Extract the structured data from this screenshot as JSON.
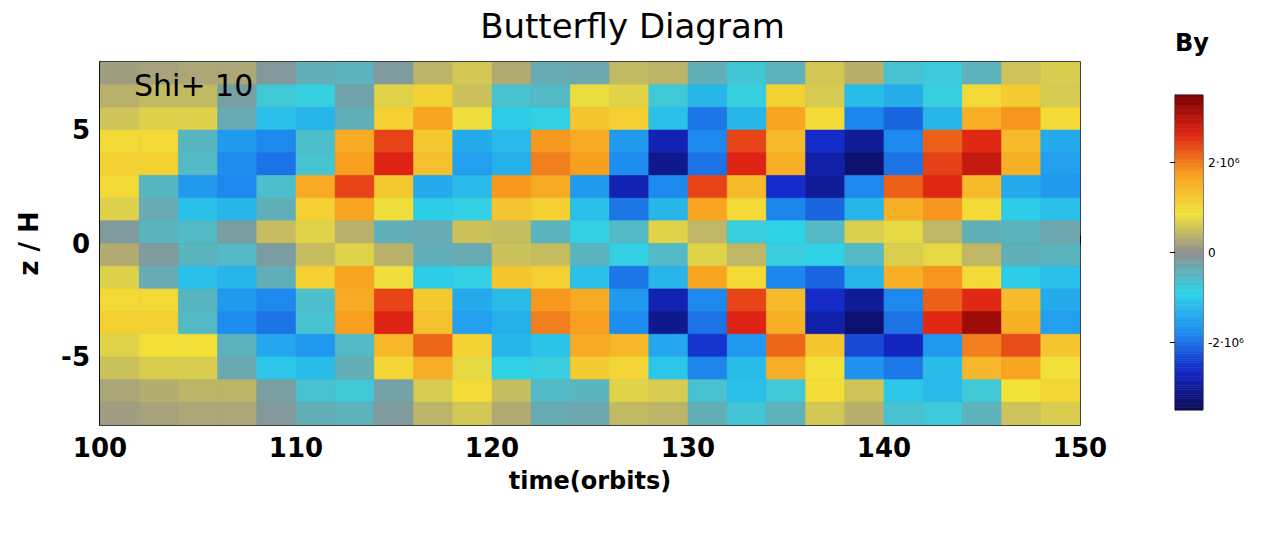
{
  "chart_data": {
    "type": "heatmap",
    "title": "Butterfly Diagram",
    "annotation": "Shi+ 10",
    "x_label": "time(orbits)",
    "y_label": "z / H",
    "xlim": [
      100,
      150
    ],
    "xticks": [
      100,
      110,
      120,
      130,
      140,
      150
    ],
    "ylim": [
      -8,
      8
    ],
    "yticks": [
      -5,
      0,
      5
    ],
    "x": [
      101,
      103,
      105,
      107,
      109,
      111,
      113,
      115,
      117,
      119,
      121,
      123,
      125,
      127,
      129,
      131,
      133,
      135,
      137,
      139,
      141,
      143,
      145,
      147,
      149
    ],
    "y": [
      7.5,
      6.5,
      5.5,
      4.5,
      3.5,
      2.5,
      1.5,
      0.5,
      -0.5,
      -1.5,
      -2.5,
      -3.5,
      -4.5,
      -5.5,
      -6.5,
      -7.5
    ],
    "values": [
      [
        150000.0,
        200000.0,
        250000.0,
        250000.0,
        -120000.0,
        -400000.0,
        -450000.0,
        -150000.0,
        400000.0,
        600000.0,
        300000.0,
        -350000.0,
        -300000.0,
        450000.0,
        400000.0,
        -400000.0,
        -700000.0,
        -450000.0,
        600000.0,
        350000.0,
        -650000.0,
        -750000.0,
        -450000.0,
        550000.0,
        650000.0
      ],
      [
        360000.0,
        450000.0,
        450000.0,
        -220000.0,
        -720000.0,
        -810000.0,
        -270000.0,
        720000.0,
        1080000.0,
        540000.0,
        -630000.0,
        -540000.0,
        810000.0,
        720000.0,
        -720000.0,
        -1260000.0,
        -810000.0,
        1080000.0,
        630000.0,
        -1170000.0,
        -1350000.0,
        -810000.0,
        990000.0,
        1170000.0,
        630000.0
      ],
      [
        560000.0,
        700000.0,
        700000.0,
        -350000.0,
        -1120000.0,
        -1260000.0,
        -420000.0,
        1120000.0,
        1680000.0,
        840000.0,
        -980000.0,
        -840000.0,
        1260000.0,
        1120000.0,
        -1120000.0,
        -1960000.0,
        -1260000.0,
        1680000.0,
        980000.0,
        -1820000.0,
        -2100000.0,
        -1260000.0,
        1540000.0,
        1820000.0,
        980000.0
      ],
      [
        1000000.0,
        1000000.0,
        -500000.0,
        -1600000.0,
        -1800000.0,
        -600000.0,
        1600000.0,
        2400000.0,
        1200000.0,
        -1400000.0,
        -1200000.0,
        1800000.0,
        1600000.0,
        -1600000.0,
        -2800000.0,
        -1800000.0,
        2400000.0,
        1400000.0,
        -2600000.0,
        -3000000.0,
        -1800000.0,
        2200000.0,
        2600000.0,
        1400000.0,
        -1400000.0
      ],
      [
        1100000.0,
        1100000.0,
        -550000.0,
        -1760000.0,
        -1980000.0,
        -660000.0,
        1760000.0,
        2640000.0,
        1320000.0,
        -1540000.0,
        -1320000.0,
        1980000.0,
        1760000.0,
        -1760000.0,
        -3080000.0,
        -1980000.0,
        2640000.0,
        1540000.0,
        -2860000.0,
        -3300000.0,
        -1980000.0,
        2420000.0,
        2860000.0,
        1540000.0,
        -1540000.0
      ],
      [
        1000000.0,
        -500000.0,
        -1600000.0,
        -1800000.0,
        -600000.0,
        1600000.0,
        2400000.0,
        1200000.0,
        -1400000.0,
        -1200000.0,
        1800000.0,
        1600000.0,
        -1600000.0,
        -2800000.0,
        -1800000.0,
        2400000.0,
        1400000.0,
        -2600000.0,
        -3000000.0,
        -1800000.0,
        2200000.0,
        2600000.0,
        1400000.0,
        -1400000.0,
        -1600000.0
      ],
      [
        700000.0,
        -350000.0,
        -1120000.0,
        -1260000.0,
        -420000.0,
        1120000.0,
        1680000.0,
        840000.0,
        -980000.0,
        -840000.0,
        1260000.0,
        1120000.0,
        -1120000.0,
        -1960000.0,
        -1260000.0,
        1680000.0,
        980000.0,
        -1820000.0,
        -2100000.0,
        -1260000.0,
        1540000.0,
        1820000.0,
        980000.0,
        -980000.0,
        -1120000.0
      ],
      [
        -150000.0,
        -480000.0,
        -540000.0,
        -180000.0,
        480000.0,
        720000.0,
        360000.0,
        -420000.0,
        -360000.0,
        540000.0,
        480000.0,
        -480000.0,
        -840000.0,
        -540000.0,
        720000.0,
        420000.0,
        -780000.0,
        -900000.0,
        -540000.0,
        660000.0,
        780000.0,
        420000.0,
        -420000.0,
        -480000.0,
        -300000.0
      ],
      [
        300000.0,
        -150000.0,
        -480000.0,
        -540000.0,
        -180000.0,
        480000.0,
        720000.0,
        360000.0,
        -420000.0,
        -360000.0,
        540000.0,
        480000.0,
        -480000.0,
        -840000.0,
        -540000.0,
        720000.0,
        420000.0,
        -780000.0,
        -900000.0,
        -540000.0,
        660000.0,
        780000.0,
        420000.0,
        -420000.0,
        -480000.0
      ],
      [
        700000.0,
        -350000.0,
        -1120000.0,
        -1260000.0,
        -420000.0,
        1120000.0,
        1680000.0,
        840000.0,
        -980000.0,
        -840000.0,
        1260000.0,
        1120000.0,
        -1120000.0,
        -1960000.0,
        -1260000.0,
        1680000.0,
        980000.0,
        -1820000.0,
        -2100000.0,
        -1260000.0,
        1540000.0,
        1820000.0,
        980000.0,
        -980000.0,
        -1120000.0
      ],
      [
        1000000.0,
        1000000.0,
        -500000.0,
        -1600000.0,
        -1800000.0,
        -600000.0,
        1600000.0,
        2400000.0,
        1200000.0,
        -1400000.0,
        -1200000.0,
        1800000.0,
        1600000.0,
        -1600000.0,
        -2800000.0,
        -1800000.0,
        2400000.0,
        1400000.0,
        -2600000.0,
        -3000000.0,
        -1800000.0,
        2200000.0,
        2600000.0,
        1400000.0,
        -1400000.0
      ],
      [
        1100000.0,
        1100000.0,
        -550000.0,
        -1760000.0,
        -1980000.0,
        -660000.0,
        1760000.0,
        2640000.0,
        1320000.0,
        -1540000.0,
        -1320000.0,
        1980000.0,
        1760000.0,
        -1760000.0,
        -3080000.0,
        -1980000.0,
        2640000.0,
        1540000.0,
        -2860000.0,
        -3300000.0,
        -1980000.0,
        2600000.0,
        3200000.0,
        1540000.0,
        -1540000.0
      ],
      [
        720000.0,
        900000.0,
        900000.0,
        -450000.0,
        -1440000.0,
        -1620000.0,
        -540000.0,
        1440000.0,
        2160000.0,
        1080000.0,
        -1260000.0,
        -1080000.0,
        1620000.0,
        1440000.0,
        -1440000.0,
        -2520000.0,
        -1620000.0,
        2160000.0,
        1260000.0,
        -2340000.0,
        -2700000.0,
        -1620000.0,
        1980000.0,
        2340000.0,
        1260000.0
      ],
      [
        520000.0,
        650000.0,
        650000.0,
        -330000.0,
        -1040000.0,
        -1170000.0,
        -390000.0,
        1040000.0,
        1560000.0,
        780000.0,
        -910000.0,
        -780000.0,
        1170000.0,
        1040000.0,
        -1040000.0,
        -1820000.0,
        -1170000.0,
        1560000.0,
        910000.0,
        -1690000.0,
        -1950000.0,
        -1170000.0,
        1430000.0,
        1690000.0,
        910000.0
      ],
      [
        240000.0,
        320000.0,
        400000.0,
        400000.0,
        -200000.0,
        -640000.0,
        -720000.0,
        -240000.0,
        640000.0,
        960000.0,
        480000.0,
        -560000.0,
        -480000.0,
        720000.0,
        640000.0,
        -640000.0,
        -1120000.0,
        -720000.0,
        960000.0,
        560000.0,
        -1040000.0,
        -1200000.0,
        -720000.0,
        880000.0,
        1040000.0
      ],
      [
        150000.0,
        200000.0,
        250000.0,
        250000.0,
        -120000.0,
        -400000.0,
        -450000.0,
        -150000.0,
        400000.0,
        600000.0,
        300000.0,
        -350000.0,
        -300000.0,
        450000.0,
        400000.0,
        -400000.0,
        -700000.0,
        -450000.0,
        600000.0,
        350000.0,
        -650000.0,
        -750000.0,
        -450000.0,
        550000.0,
        650000.0
      ]
    ],
    "colorbar": {
      "label": "By",
      "range": [
        -3500000,
        3500000
      ],
      "ticks": [
        {
          "value": -2000000,
          "label": "-2·10⁶"
        },
        0,
        {
          "value": 2000000,
          "label": "2·10⁶"
        }
      ]
    }
  }
}
